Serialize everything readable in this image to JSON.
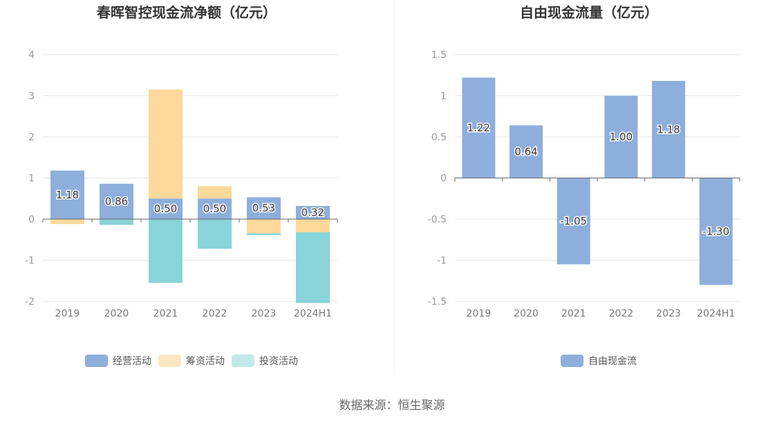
{
  "source_text": "数据来源：恒生聚源",
  "chart_data": [
    {
      "type": "bar",
      "stacked": true,
      "title": "春晖智控现金流净额（亿元）",
      "categories": [
        "2019",
        "2020",
        "2021",
        "2022",
        "2023",
        "2024H1"
      ],
      "ylim": [
        -2,
        4
      ],
      "yticks": [
        -2,
        -1,
        0,
        1,
        2,
        3,
        4
      ],
      "grid": true,
      "legend_position": "bottom",
      "series": [
        {
          "name": "经营活动",
          "color": "#8eaedc",
          "values": [
            1.18,
            0.86,
            0.5,
            0.5,
            0.53,
            0.32
          ],
          "labels": [
            "1.18",
            "0.86",
            "0.50",
            "0.50",
            "0.53",
            "0.32"
          ]
        },
        {
          "name": "筹资活动",
          "color": "#fdd89b",
          "values": [
            -0.12,
            0.0,
            2.65,
            0.3,
            -0.35,
            -0.32
          ]
        },
        {
          "name": "投资活动",
          "color": "#88d4d8",
          "values": [
            0.0,
            -0.14,
            -1.55,
            -0.72,
            -0.04,
            -1.72
          ]
        }
      ],
      "legend_colors": [
        "#8eaedc",
        "#fde7c3",
        "#c3e8ea"
      ]
    },
    {
      "type": "bar",
      "title": "自由现金流量（亿元）",
      "categories": [
        "2019",
        "2020",
        "2021",
        "2022",
        "2023",
        "2024H1"
      ],
      "ylim": [
        -1.5,
        1.5
      ],
      "yticks": [
        -1.5,
        -1,
        -0.5,
        0,
        0.5,
        1,
        1.5
      ],
      "grid": true,
      "legend_position": "bottom",
      "series": [
        {
          "name": "自由现金流",
          "color": "#8eaedc",
          "values": [
            1.22,
            0.64,
            -1.05,
            1.0,
            1.18,
            -1.3
          ],
          "labels": [
            "1.22",
            "0.64",
            "-1.05",
            "1.00",
            "1.18",
            "-1.30"
          ]
        }
      ],
      "legend_colors": [
        "#8eaedc"
      ]
    }
  ]
}
